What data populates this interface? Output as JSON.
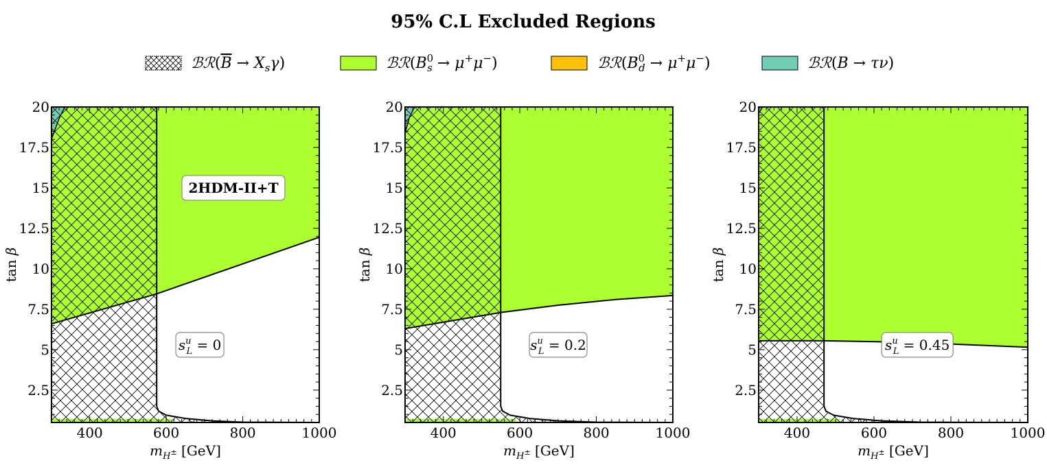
{
  "title": "95% C.L Excluded Regions",
  "colors": {
    "bs_mumu": "#ADFF2F",
    "bd_mumu": "#FFC107",
    "b_taunu": "#70CDB4",
    "hatch": "#000000"
  },
  "legend": {
    "placement": "top-center",
    "items": [
      {
        "key": "bsgamma",
        "style": "hatch",
        "label_tex": "BR(B̄ → X_s γ)"
      },
      {
        "key": "bs_mumu",
        "style": "fill",
        "label_tex": "BR(B_s^0 → μ⁺μ⁻)"
      },
      {
        "key": "bd_mumu",
        "style": "fill",
        "label_tex": "BR(B_d^0 → μ⁺μ⁻)"
      },
      {
        "key": "b_taunu",
        "style": "fill",
        "label_tex": "BR(B → τν)"
      }
    ]
  },
  "model_label": "2HDM-II+T",
  "chart_data": [
    {
      "type": "area",
      "title": "",
      "xlabel": "m_{H±} [GeV]",
      "ylabel": "tan β",
      "xlim": [
        300,
        1000
      ],
      "ylim": [
        0.5,
        20.0
      ],
      "xticks": [
        400,
        600,
        800,
        1000
      ],
      "yticks": [
        2.5,
        5.0,
        7.5,
        10.0,
        12.5,
        15.0,
        17.5,
        20.0
      ],
      "annotation": "s_L^u = 0",
      "model_label_shown": true,
      "bsgamma_vertical_x": 575,
      "bsgamma_lower_curve": [
        [
          575,
          1.5
        ],
        [
          580,
          1.2
        ],
        [
          600,
          0.95
        ],
        [
          650,
          0.75
        ],
        [
          720,
          0.6
        ],
        [
          800,
          0.52
        ],
        [
          1000,
          0.5
        ]
      ],
      "bs_mumu_boundary": [
        [
          300,
          6.6
        ],
        [
          575,
          8.45
        ],
        [
          1000,
          11.95
        ]
      ],
      "b_taunu_region": [
        [
          300,
          18.0
        ],
        [
          300,
          20.0
        ],
        [
          335,
          20.0
        ],
        [
          320,
          19.3
        ]
      ],
      "bottom_strip_tanb": 0.72
    },
    {
      "type": "area",
      "title": "",
      "xlabel": "m_{H±} [GeV]",
      "ylabel": "tan β",
      "xlim": [
        300,
        1000
      ],
      "ylim": [
        0.5,
        20.0
      ],
      "xticks": [
        400,
        600,
        800,
        1000
      ],
      "yticks": [
        2.5,
        5.0,
        7.5,
        10.0,
        12.5,
        15.0,
        17.5,
        20.0
      ],
      "annotation": "s_L^u = 0.2",
      "model_label_shown": false,
      "bsgamma_vertical_x": 550,
      "bsgamma_lower_curve": [
        [
          550,
          1.5
        ],
        [
          555,
          1.2
        ],
        [
          575,
          0.95
        ],
        [
          625,
          0.75
        ],
        [
          700,
          0.6
        ],
        [
          800,
          0.52
        ],
        [
          1000,
          0.5
        ]
      ],
      "bs_mumu_boundary": [
        [
          300,
          6.3
        ],
        [
          550,
          7.3
        ],
        [
          700,
          7.75
        ],
        [
          850,
          8.1
        ],
        [
          1000,
          8.35
        ]
      ],
      "b_taunu_region": [
        [
          300,
          18.4
        ],
        [
          300,
          20.0
        ],
        [
          325,
          20.0
        ],
        [
          312,
          19.4
        ]
      ],
      "bottom_strip_tanb": 0.72
    },
    {
      "type": "area",
      "title": "",
      "xlabel": "m_{H±} [GeV]",
      "ylabel": "tan β",
      "xlim": [
        300,
        1000
      ],
      "ylim": [
        0.5,
        20.0
      ],
      "xticks": [
        400,
        600,
        800,
        1000
      ],
      "yticks": [
        2.5,
        5.0,
        7.5,
        10.0,
        12.5,
        15.0,
        17.5,
        20.0
      ],
      "annotation": "s_L^u = 0.45",
      "model_label_shown": false,
      "bsgamma_vertical_x": 470,
      "bsgamma_lower_curve": [
        [
          470,
          1.5
        ],
        [
          475,
          1.2
        ],
        [
          495,
          0.95
        ],
        [
          545,
          0.75
        ],
        [
          620,
          0.6
        ],
        [
          720,
          0.52
        ],
        [
          1000,
          0.5
        ]
      ],
      "bs_mumu_boundary": [
        [
          300,
          5.55
        ],
        [
          470,
          5.55
        ],
        [
          700,
          5.45
        ],
        [
          1000,
          5.15
        ]
      ],
      "b_taunu_region": [
        [
          300,
          19.6
        ],
        [
          300,
          20.0
        ],
        [
          310,
          20.0
        ]
      ],
      "bottom_strip_tanb": 0.72
    }
  ]
}
